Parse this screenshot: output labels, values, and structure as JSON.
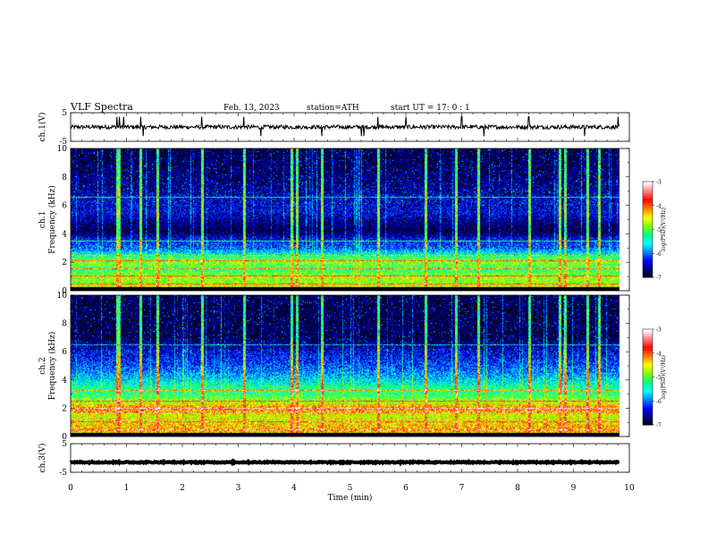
{
  "header": {
    "title": "VLF  Spectra",
    "date": "Feb. 13, 2023",
    "station": "station=ATH",
    "start": "start  UT  =    17: 0   : 1"
  },
  "chart_data": {
    "type": "heatmap",
    "xlabel": "Time  (min)",
    "xlim": [
      0,
      10
    ],
    "x_ticks": [
      "0",
      "1",
      "2",
      "3",
      "4",
      "5",
      "6",
      "7",
      "8",
      "9",
      "10"
    ],
    "panels": [
      {
        "id": "ch1_waveform",
        "type": "line",
        "ylabel": "ch.1(V)",
        "ylim": [
          -5,
          5
        ],
        "y_ticks": [
          "5",
          "-5"
        ],
        "baseline": 0,
        "noise_amplitude": 0.7,
        "spikes_up_at_min": [
          0.83,
          0.87,
          0.95,
          1.25,
          2.35,
          3.1,
          5.5,
          6.0,
          7.0,
          8.2,
          9.8
        ],
        "spikes_down_at_min": [
          1.3,
          3.4,
          4.5,
          5.2,
          5.25,
          7.4,
          9.2
        ],
        "color": "#000000"
      },
      {
        "id": "ch1_spectrogram",
        "type": "heatmap",
        "ylabel": "ch.1\nFrequency  (kHz)",
        "ylim": [
          0,
          10
        ],
        "y_ticks": [
          "0",
          "2",
          "4",
          "6",
          "8",
          "10"
        ],
        "colorbar": {
          "label": "log(PSD)(V²/Hz)",
          "ticks": [
            "-3",
            "-4",
            "-5",
            "-6",
            "-7"
          ],
          "range": [
            -7,
            -3
          ]
        },
        "profile_kHz_log": [
          [
            0,
            -4.1
          ],
          [
            0.3,
            -4.3
          ],
          [
            0.6,
            -4.6
          ],
          [
            1.0,
            -4.5
          ],
          [
            1.5,
            -5.0
          ],
          [
            2.0,
            -4.6
          ],
          [
            2.3,
            -4.9
          ],
          [
            3.0,
            -5.9
          ],
          [
            3.6,
            -6.2
          ],
          [
            4.2,
            -6.8
          ],
          [
            4.8,
            -6.6
          ],
          [
            5.5,
            -6.3
          ],
          [
            6.5,
            -6.4
          ],
          [
            7.5,
            -6.6
          ],
          [
            8.5,
            -6.7
          ],
          [
            10,
            -6.8
          ]
        ],
        "lines_kHz": [
          0.5,
          1.05,
          1.6,
          2.15,
          2.5,
          3.5,
          6.6
        ],
        "sferic_min": [
          0.83,
          0.87,
          1.25,
          1.55,
          2.35,
          3.1,
          3.95,
          4.05,
          4.5,
          5.5,
          6.35,
          6.9,
          7.3,
          8.2,
          8.75,
          8.85,
          9.25,
          9.45
        ]
      },
      {
        "id": "ch2_spectrogram",
        "type": "heatmap",
        "ylabel": "ch.2\nFrequency  (kHz)",
        "ylim": [
          0,
          10
        ],
        "y_ticks": [
          "0",
          "2",
          "4",
          "6",
          "8",
          "10"
        ],
        "colorbar": {
          "label": "log(PSD)(V²/Hz)",
          "ticks": [
            "-3",
            "-4",
            "-5",
            "-6",
            "-7"
          ],
          "range": [
            -7,
            -3
          ]
        },
        "profile_kHz_log": [
          [
            0,
            -4.3
          ],
          [
            0.5,
            -4.0
          ],
          [
            1.0,
            -4.2
          ],
          [
            1.5,
            -4.4
          ],
          [
            2.0,
            -3.8
          ],
          [
            2.5,
            -4.5
          ],
          [
            3.0,
            -5.0
          ],
          [
            3.5,
            -5.1
          ],
          [
            4.2,
            -5.6
          ],
          [
            5.0,
            -6.0
          ],
          [
            6.0,
            -6.3
          ],
          [
            7.0,
            -6.8
          ],
          [
            8.0,
            -6.8
          ],
          [
            10,
            -6.8
          ]
        ],
        "lines_kHz": [
          0.5,
          1.1,
          1.75,
          2.0,
          2.55,
          3.3,
          6.5
        ],
        "sferic_min": [
          0.83,
          0.87,
          1.25,
          1.55,
          2.35,
          3.1,
          3.95,
          4.05,
          4.5,
          5.5,
          6.35,
          6.9,
          7.3,
          8.2,
          8.75,
          8.85,
          9.25,
          9.45
        ]
      },
      {
        "id": "ch3_waveform",
        "type": "line",
        "ylabel": "ch.3(V)",
        "ylim": [
          -5,
          5
        ],
        "y_ticks": [
          "5",
          "-5"
        ],
        "baseline": -1.5,
        "noise_amplitude": 0.2,
        "color": "#000000"
      }
    ],
    "data_extent_min": [
      0,
      9.82
    ]
  },
  "colors": {
    "jet": [
      "#000000",
      "#00007f",
      "#0000ff",
      "#007fff",
      "#00ffff",
      "#00ff7f",
      "#7fff00",
      "#ffff00",
      "#ff7f00",
      "#ff0000",
      "#ff8080",
      "#ffffff"
    ]
  }
}
